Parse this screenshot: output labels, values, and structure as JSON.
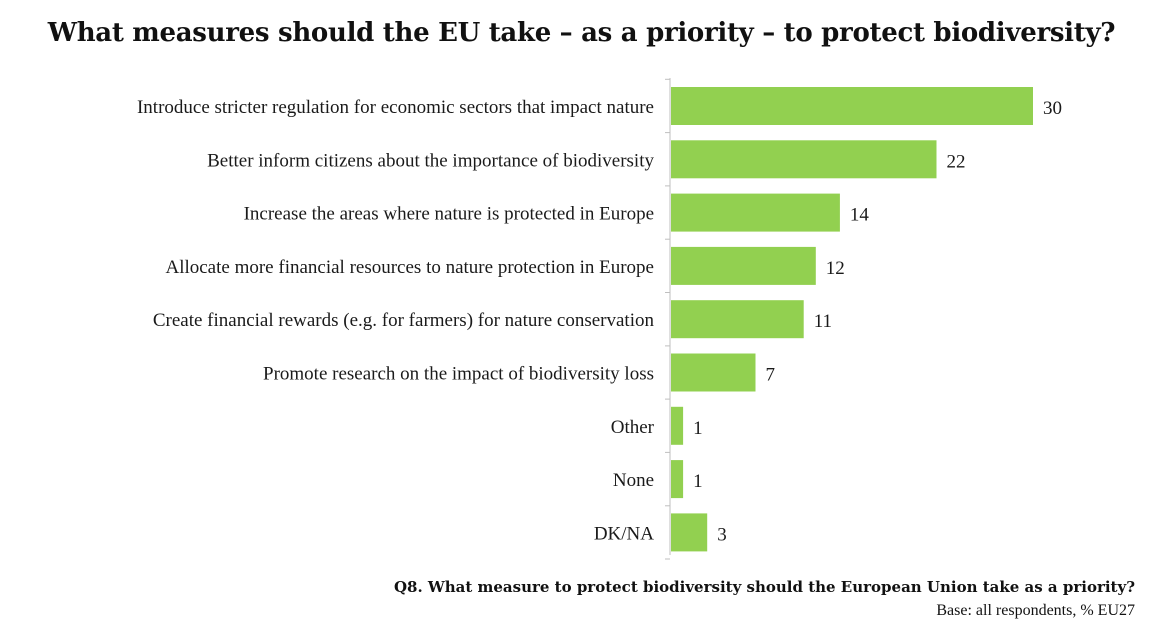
{
  "page": {
    "title": "What measures should the EU take – as a priority – to protect biodiversity?",
    "question": "Q8. What measure to protect biodiversity should the European Union take as a priority?",
    "base": "Base: all respondents, % EU27"
  },
  "colors": {
    "bar": "#92d050",
    "axis": "#bfbfbf",
    "text": "#1a1a1a"
  },
  "chart_data": {
    "type": "bar",
    "orientation": "horizontal",
    "title": "What measures should the EU take – as a priority – to protect biodiversity?",
    "xlabel": "",
    "ylabel": "",
    "unit": "%",
    "xlim": [
      0,
      30
    ],
    "categories": [
      "Introduce stricter regulation for economic sectors that impact nature",
      "Better inform citizens about the importance of biodiversity",
      "Increase the areas where nature is protected in Europe",
      "Allocate more financial resources to nature protection in Europe",
      "Create financial rewards (e.g. for farmers) for nature conservation",
      "Promote research on the impact of biodiversity loss",
      "Other",
      "None",
      "DK/NA"
    ],
    "values": [
      30,
      22,
      14,
      12,
      11,
      7,
      1,
      1,
      3
    ],
    "legend": "none",
    "grid": false
  }
}
